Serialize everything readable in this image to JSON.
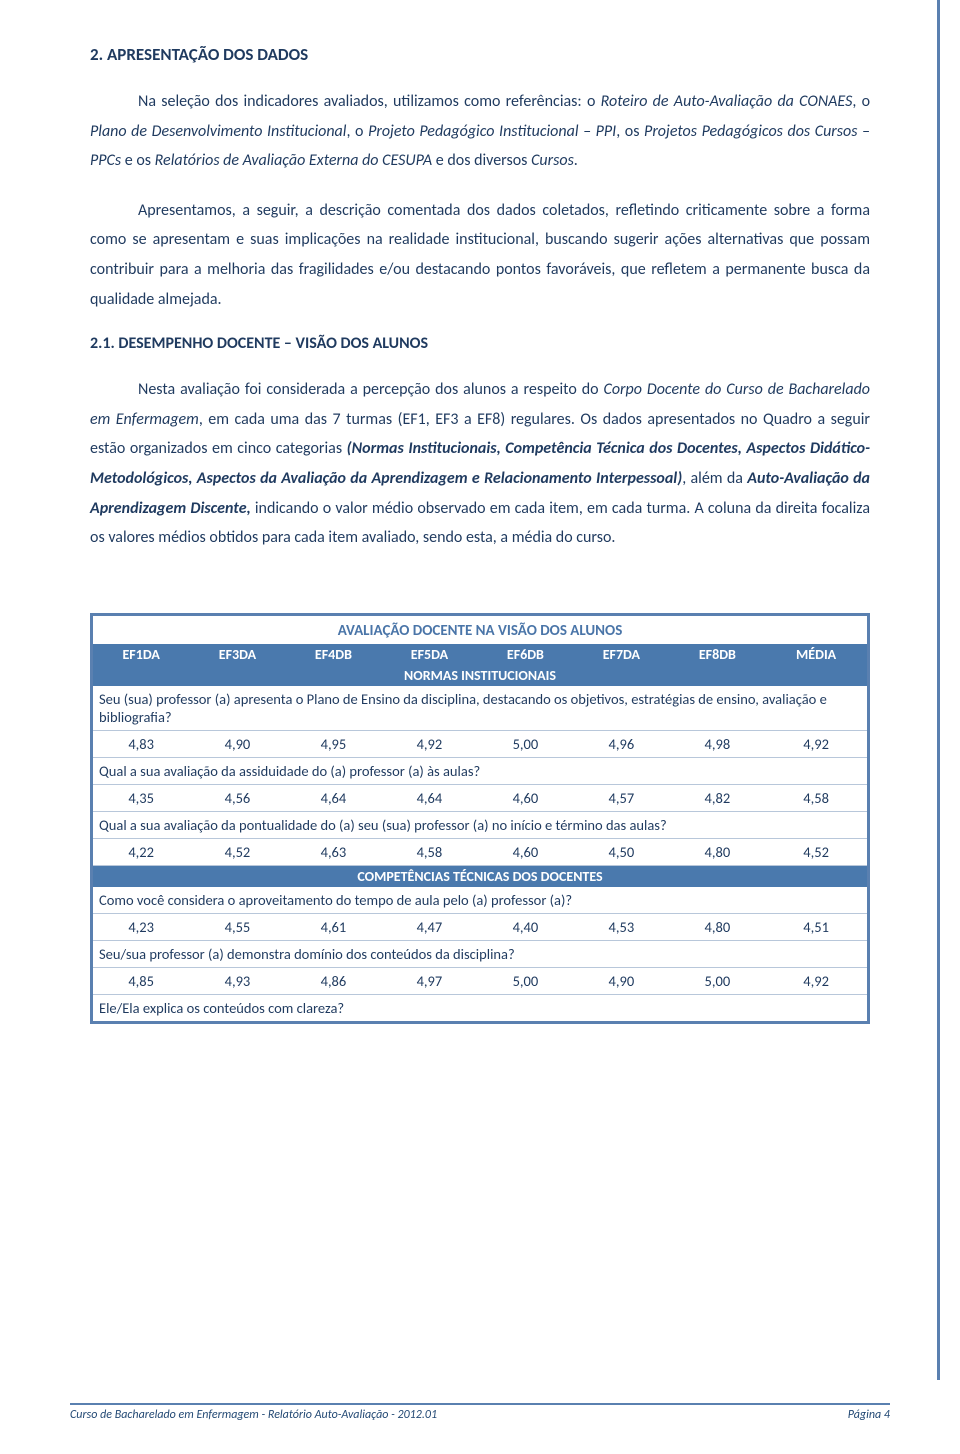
{
  "side_line_color": "#5a80b0",
  "text_color": "#1f3a5f",
  "section": {
    "heading": "2.    APRESENTAÇÃO DOS DADOS",
    "para1_a": "Na seleção dos indicadores avaliados, utilizamos como referências: o ",
    "para1_i1": "Roteiro de Auto-Avaliação da CONAES",
    "para1_b": ", o ",
    "para1_i2": "Plano de Desenvolvimento Institucional",
    "para1_c": ", o ",
    "para1_i3": "Projeto Pedagógico Institucional – PPI",
    "para1_d": ", os ",
    "para1_i4": "Projetos Pedagógicos dos Cursos – PPCs",
    "para1_e": " e os ",
    "para1_i5": "Relatórios de Avaliação Externa do CESUPA",
    "para1_f": " e dos diversos ",
    "para1_i6": "Cursos",
    "para1_g": ".",
    "para2": "Apresentamos, a seguir, a descrição comentada dos dados coletados, refletindo criticamente sobre a forma como se apresentam e suas implicações na realidade institucional, buscando sugerir ações alternativas que possam contribuir para a melhoria das fragilidades e/ou destacando pontos favoráveis, que refletem a permanente busca da qualidade almejada."
  },
  "subsection": {
    "heading": "2.1.  DESEMPENHO DOCENTE – VISÃO DOS ALUNOS",
    "p1_a": "Nesta avaliação foi considerada a percepção dos alunos a respeito do ",
    "p1_i1": "Corpo Docente do Curso de Bacharelado em Enfermagem",
    "p1_b": ", em cada uma das 7 turmas (EF1, EF3 a EF8) regulares. Os dados apresentados no Quadro a seguir estão organizados em cinco categorias ",
    "p1_bi1": "(Normas Institucionais, Competência Técnica dos Docentes, Aspectos Didático-Metodológicos, Aspectos da Avaliação da Aprendizagem e Relacionamento Interpessoal)",
    "p1_c": ", além da ",
    "p1_bi2": "Auto-Avaliação da Aprendizagem Discente,",
    "p1_d": " indicando o valor médio observado em cada item, em cada turma. A coluna da direita focaliza os valores médios obtidos para cada item avaliado, sendo esta, a média do curso."
  },
  "table": {
    "title": "AVALIAÇÃO DOCENTE NA VISÃO DOS ALUNOS",
    "header_bg": "#4a79ad",
    "header_fg": "#ffffff",
    "row_border": "#b8c7da",
    "columns": [
      "EF1DA",
      "EF3DA",
      "EF4DB",
      "EF5DA",
      "EF6DB",
      "EF7DA",
      "EF8DB",
      "MÉDIA"
    ],
    "cat1": "NORMAS INSTITUCIONAIS",
    "q1": "Seu (sua) professor (a) apresenta o Plano de Ensino da disciplina, destacando os objetivos, estratégias de ensino, avaliação e bibliografia?",
    "r1": [
      "4,83",
      "4,90",
      "4,95",
      "4,92",
      "5,00",
      "4,96",
      "4,98",
      "4,92"
    ],
    "q2": "Qual a sua avaliação da assiduidade do (a) professor (a) às aulas?",
    "r2": [
      "4,35",
      "4,56",
      "4,64",
      "4,64",
      "4,60",
      "4,57",
      "4,82",
      "4,58"
    ],
    "q3": "Qual a sua avaliação da pontualidade do (a) seu (sua) professor (a) no início e término das aulas?",
    "r3": [
      "4,22",
      "4,52",
      "4,63",
      "4,58",
      "4,60",
      "4,50",
      "4,80",
      "4,52"
    ],
    "cat2": "COMPETÊNCIAS TÉCNICAS DOS DOCENTES",
    "q4": "Como você considera o aproveitamento do tempo de aula pelo (a) professor (a)?",
    "r4": [
      "4,23",
      "4,55",
      "4,61",
      "4,47",
      "4,40",
      "4,53",
      "4,80",
      "4,51"
    ],
    "q5": "Seu/sua professor (a) demonstra domínio dos conteúdos da disciplina?",
    "r5": [
      "4,85",
      "4,93",
      "4,86",
      "4,97",
      "5,00",
      "4,90",
      "5,00",
      "4,92"
    ],
    "q6": "Ele/Ela explica os conteúdos com clareza?"
  },
  "footer": {
    "left": "Curso de Bacharelado em Enfermagem - Relatório Auto-Avaliação - 2012.01",
    "right": "Página 4"
  }
}
